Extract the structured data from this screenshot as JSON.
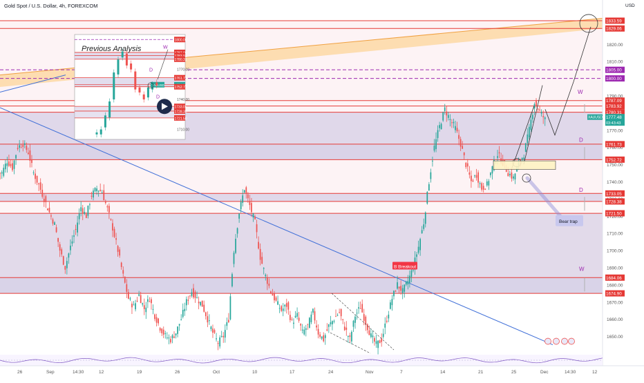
{
  "header": {
    "title": "Gold Spot / U.S. Dollar, 4h, FOREXCOM",
    "currency": "USD"
  },
  "colors": {
    "up": "#26a69a",
    "down": "#ef5350",
    "level_line": "#e53935",
    "zone_fill": "#d6cfe6",
    "pink_fill": "#fbe9ec",
    "trend_line": "#3f6fd8",
    "fib_purple": "#9c27b0",
    "orange_band": "#fcd59a",
    "label_bg": "#f23645",
    "price_tag_bg": "#26a69a"
  },
  "chart_data": {
    "type": "candlestick",
    "symbol": "XAUUSD",
    "timeframe": "4h",
    "ylim": [
      1640,
      1840
    ],
    "y_ticks": [
      1650,
      1660,
      1670,
      1680,
      1690,
      1700,
      1710,
      1720,
      1730,
      1740,
      1750,
      1760,
      1770,
      1780,
      1790,
      1800,
      1810,
      1820
    ],
    "x_ticks": [
      "26",
      "Sep",
      "14:30",
      "12",
      "19",
      "26",
      "Oct",
      "10",
      "17",
      "24",
      "Nov",
      "7",
      "14",
      "21",
      "25",
      "Dec",
      "14:30",
      "12"
    ],
    "levels": [
      1833.59,
      1829.06,
      1805.0,
      1800.0,
      1787.09,
      1783.92,
      1780.31,
      1761.73,
      1752.72,
      1733.05,
      1728.38,
      1721.5,
      1684.06,
      1674.9
    ],
    "last_price": "1777.48",
    "countdown": "03:43:43",
    "price_tag_symbol": "XAUUSD",
    "close_series": [
      1745,
      1752,
      1748,
      1760,
      1762,
      1757,
      1745,
      1738,
      1730,
      1722,
      1715,
      1700,
      1690,
      1702,
      1712,
      1725,
      1720,
      1732,
      1736,
      1734,
      1724,
      1713,
      1700,
      1685,
      1672,
      1667,
      1674,
      1666,
      1672,
      1662,
      1655,
      1650,
      1648,
      1652,
      1660,
      1670,
      1676,
      1672,
      1668,
      1660,
      1652,
      1646,
      1650,
      1660,
      1700,
      1722,
      1736,
      1726,
      1716,
      1696,
      1685,
      1676,
      1670,
      1665,
      1668,
      1658,
      1662,
      1652,
      1656,
      1664,
      1652,
      1648,
      1656,
      1660,
      1664,
      1655,
      1648,
      1662,
      1667,
      1658,
      1650,
      1645,
      1648,
      1660,
      1672,
      1680,
      1676,
      1682,
      1690,
      1702,
      1716,
      1740,
      1760,
      1772,
      1782,
      1776,
      1771,
      1762,
      1750,
      1740,
      1744,
      1736,
      1738,
      1748,
      1756,
      1751,
      1745,
      1742,
      1750,
      1756,
      1770,
      1786,
      1781,
      1776
    ],
    "annotations": {
      "breakout": "Breakout",
      "bear_trap": "Bear trap",
      "previous_analysis": "Previous Analysis",
      "wave_labels": [
        "W",
        "D",
        "D",
        "W"
      ]
    },
    "inset": {
      "y_ticks": [
        1710.0,
        1740.0,
        1770.0
      ],
      "levels": [
        1800.0,
        1787.09,
        1783.92,
        1780.31,
        1761.73,
        1754.74,
        1752.72,
        1733.05,
        1728.38,
        1721.5
      ],
      "price_tag_symbol": "XAUUSD",
      "wave_labels": [
        "W",
        "D",
        "D"
      ]
    },
    "grid": false
  }
}
